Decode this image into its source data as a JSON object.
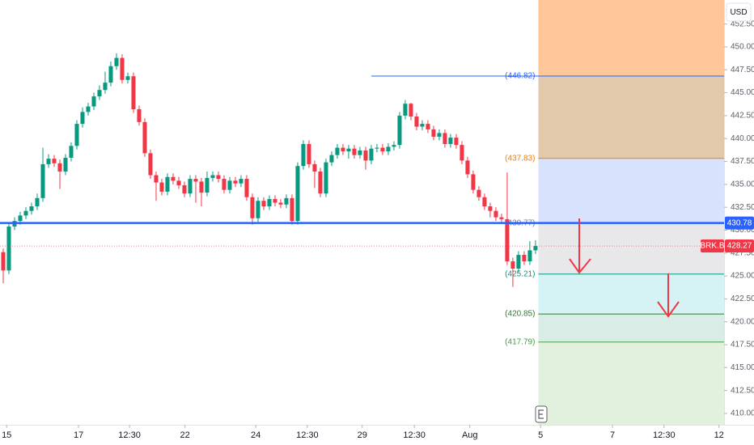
{
  "chart_data": {
    "type": "candlestick",
    "symbol": "BRK.B",
    "currency": "USD",
    "up_color": "#089981",
    "down_color": "#f23645",
    "open": [
      427.6,
      425.6,
      430.4,
      431.0,
      431.6,
      432.1,
      432.6,
      433.5,
      437.2,
      437.8,
      437.3,
      436.4,
      437.9,
      439.2,
      441.6,
      442.9,
      443.5,
      444.6,
      445.3,
      446.1,
      447.9,
      448.8,
      446.4,
      446.8,
      443.2,
      441.8,
      438.4,
      436.0,
      435.2,
      434.2,
      435.8,
      435.4,
      434.9,
      434.0,
      435.6,
      435.3,
      434.1,
      435.7,
      436.0,
      435.6,
      434.4,
      435.4,
      435.1,
      435.6,
      433.6,
      431.3,
      433.2,
      432.6,
      433.4,
      433.0,
      432.8,
      433.5,
      431.0,
      437.0,
      439.4,
      437.2,
      436.4,
      434.0,
      437.4,
      438.2,
      439.0,
      438.6,
      438.9,
      438.2,
      438.7,
      437.6,
      438.9,
      439.0,
      438.6,
      439.1,
      439.3,
      442.5,
      443.8,
      442.4,
      441.3,
      441.6,
      441.0,
      440.2,
      440.6,
      439.4,
      440.1,
      439.3,
      437.6,
      436.1,
      434.4,
      433.6,
      432.6,
      432.1,
      431.4,
      431.2,
      426.6,
      425.8,
      427.3,
      426.6,
      427.8
    ],
    "high": [
      428.0,
      430.8,
      431.4,
      432.0,
      432.5,
      433.0,
      434.0,
      439.0,
      438.3,
      438.2,
      437.7,
      438.3,
      439.6,
      442.0,
      443.4,
      443.9,
      445.0,
      445.8,
      447.3,
      448.4,
      449.3,
      449.2,
      447.2,
      447.2,
      443.6,
      442.2,
      438.8,
      436.4,
      435.6,
      436.2,
      436.2,
      435.8,
      435.3,
      436.0,
      436.0,
      435.7,
      436.4,
      436.4,
      436.4,
      436.0,
      435.8,
      435.8,
      436.0,
      436.0,
      434.0,
      433.6,
      433.6,
      433.8,
      433.8,
      433.4,
      433.9,
      433.9,
      437.4,
      439.8,
      439.8,
      437.6,
      436.8,
      437.8,
      438.6,
      439.4,
      439.4,
      439.3,
      439.3,
      439.1,
      439.1,
      439.3,
      439.4,
      439.4,
      439.5,
      439.7,
      442.9,
      444.2,
      443.9,
      442.8,
      442.0,
      442.0,
      441.4,
      441.0,
      441.0,
      440.5,
      440.5,
      439.7,
      438.0,
      436.5,
      434.8,
      434.0,
      433.0,
      432.5,
      431.8,
      436.3,
      427.0,
      427.7,
      427.7,
      428.8,
      428.9
    ],
    "low": [
      424.2,
      425.2,
      430.0,
      430.6,
      431.2,
      431.7,
      432.2,
      433.1,
      436.8,
      436.9,
      434.5,
      436.0,
      437.5,
      438.8,
      441.2,
      442.5,
      443.1,
      444.2,
      444.9,
      445.7,
      447.5,
      446.0,
      446.0,
      442.8,
      441.4,
      438.0,
      435.6,
      433.2,
      433.8,
      433.8,
      435.0,
      434.5,
      433.6,
      433.6,
      433.0,
      432.6,
      433.7,
      435.3,
      435.2,
      434.0,
      434.0,
      434.7,
      434.7,
      433.2,
      430.6,
      430.9,
      432.2,
      432.2,
      432.6,
      432.4,
      432.4,
      430.6,
      430.6,
      436.6,
      436.8,
      434.6,
      433.6,
      433.6,
      437.0,
      437.8,
      438.2,
      437.8,
      437.8,
      437.8,
      436.6,
      437.2,
      438.5,
      438.2,
      438.2,
      438.7,
      438.9,
      442.1,
      442.0,
      440.9,
      440.9,
      440.6,
      439.8,
      439.8,
      439.0,
      439.0,
      438.9,
      437.2,
      435.7,
      434.0,
      433.2,
      432.2,
      431.4,
      431.0,
      430.8,
      426.2,
      423.8,
      425.4,
      426.2,
      426.2,
      427.4
    ],
    "close": [
      425.6,
      430.4,
      431.0,
      431.6,
      432.1,
      432.6,
      433.5,
      437.2,
      437.8,
      437.3,
      436.4,
      437.9,
      439.2,
      441.6,
      442.9,
      443.5,
      444.6,
      445.3,
      446.1,
      447.9,
      448.8,
      446.4,
      446.8,
      443.2,
      441.8,
      438.4,
      436.0,
      435.2,
      434.2,
      435.8,
      435.4,
      434.9,
      434.0,
      435.6,
      435.3,
      434.1,
      435.7,
      436.0,
      435.6,
      434.4,
      435.4,
      435.1,
      435.6,
      433.6,
      431.3,
      433.2,
      432.6,
      433.4,
      433.0,
      432.8,
      433.5,
      431.0,
      437.0,
      439.4,
      437.2,
      436.4,
      434.0,
      437.4,
      438.2,
      439.0,
      438.6,
      438.9,
      438.2,
      438.7,
      437.6,
      438.9,
      439.0,
      438.6,
      439.1,
      439.3,
      442.5,
      443.8,
      442.4,
      441.3,
      441.6,
      441.0,
      440.2,
      440.6,
      439.4,
      440.1,
      439.3,
      437.6,
      436.1,
      434.4,
      433.6,
      432.6,
      432.1,
      431.4,
      431.2,
      426.6,
      425.8,
      427.3,
      426.6,
      427.8,
      428.27
    ],
    "ylim": [
      408.76,
      455.12
    ],
    "yticks": [
      {
        "value": 410,
        "label": "410.00"
      },
      {
        "value": 412.5,
        "label": "412.50"
      },
      {
        "value": 415,
        "label": "415.00"
      },
      {
        "value": 417.5,
        "label": "417.50"
      },
      {
        "value": 420,
        "label": "420.00"
      },
      {
        "value": 422.5,
        "label": "422.50"
      },
      {
        "value": 425,
        "label": "425.00"
      },
      {
        "value": 427.5,
        "label": "427.50"
      },
      {
        "value": 430,
        "label": "430.00"
      },
      {
        "value": 432.5,
        "label": "432.50"
      },
      {
        "value": 435,
        "label": "435.00"
      },
      {
        "value": 437.5,
        "label": "437.50"
      },
      {
        "value": 440,
        "label": "440.00"
      },
      {
        "value": 442.5,
        "label": "442.50"
      },
      {
        "value": 445,
        "label": "445.00"
      },
      {
        "value": 447.5,
        "label": "447.50"
      },
      {
        "value": 450,
        "label": "450.00"
      },
      {
        "value": 452.5,
        "label": "452.50"
      }
    ],
    "xlim": [
      -0.57,
      127.3
    ],
    "xticks": [
      {
        "value": 0.6,
        "label": "15"
      },
      {
        "value": 13.3,
        "label": "17"
      },
      {
        "value": 22.3,
        "label": "12:30"
      },
      {
        "value": 32.1,
        "label": "22"
      },
      {
        "value": 44.6,
        "label": "24"
      },
      {
        "value": 53.7,
        "label": "12:30"
      },
      {
        "value": 63.4,
        "label": "29"
      },
      {
        "value": 72.6,
        "label": "12:30"
      },
      {
        "value": 82.4,
        "label": "Aug"
      },
      {
        "value": 94.9,
        "label": "5"
      },
      {
        "value": 107.6,
        "label": "7"
      },
      {
        "value": 116.7,
        "label": "12:30"
      },
      {
        "value": 126.4,
        "label": "12"
      }
    ],
    "horizontal_line": {
      "value": 430.78,
      "label": "430.78",
      "color": "#2962ff"
    },
    "levels": [
      {
        "value": 446.82,
        "label": "(446.82)",
        "color": "#2962ff"
      },
      {
        "value": 437.83,
        "label": "(437.83)",
        "color": "#f57c00"
      },
      {
        "value": 430.77,
        "label": "(430.77)",
        "color": "#787b86"
      },
      {
        "value": 425.21,
        "label": "(425.21)",
        "color": "#089981"
      },
      {
        "value": 420.85,
        "label": "(420.85)",
        "color": "#2e7d32"
      },
      {
        "value": 417.79,
        "label": "(417.79)",
        "color": "#43a047"
      }
    ],
    "zone_colors": [
      "#ffc08e",
      "#e0c3a3",
      "#d3e0fd",
      "#e6e6e8",
      "#d0f2f4",
      "#d5ebe3",
      "#dff0da"
    ]
  }
}
